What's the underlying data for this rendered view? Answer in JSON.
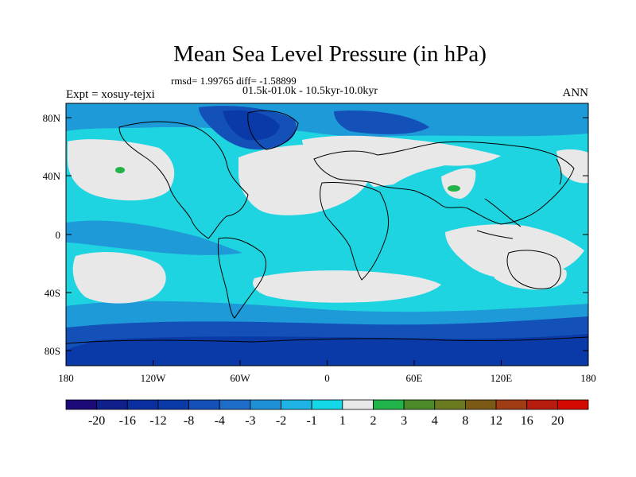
{
  "title": "Mean Sea Level Pressure (in hPa)",
  "stats": "rmsd= 1.99765 diff= -1.58899",
  "period": "01.5k-01.0k - 10.5kyr-10.0kyr",
  "experiment": "Expt = xosuy-tejxi",
  "season": "ANN",
  "lat_labels": [
    "80N",
    "40N",
    "0",
    "40S",
    "80S"
  ],
  "lon_labels": [
    "180",
    "120W",
    "60W",
    "0",
    "60E",
    "120E",
    "180"
  ],
  "colorbar": {
    "colors": [
      "#1b0a78",
      "#0f1f8c",
      "#0a2fa0",
      "#0a3aa8",
      "#1350b8",
      "#1c6cc8",
      "#1e90d6",
      "#1eb4e4",
      "#14d8e8",
      "#e8e8e8",
      "#22b44a",
      "#4c8c28",
      "#6a7a1e",
      "#7a5a14",
      "#a03c14",
      "#b81c0e",
      "#d40a00"
    ],
    "labels": [
      "-20",
      "-16",
      "-12",
      "-8",
      "-4",
      "-3",
      "-2",
      "-1",
      "1",
      "2",
      "3",
      "4",
      "8",
      "12",
      "16",
      "20"
    ]
  },
  "palette": {
    "land_outline": "#000000",
    "neutral": "#e8e8e8",
    "cyan": "#1ed4e0",
    "mid_blue": "#1e9ad8",
    "dark_blue": "#0a3aa8",
    "green": "#22b44a"
  }
}
